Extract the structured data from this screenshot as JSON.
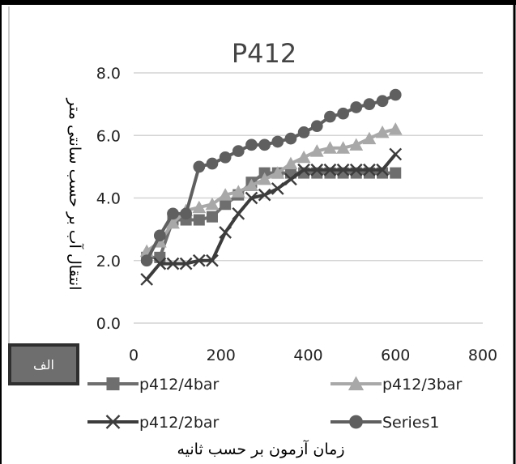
{
  "panel_label": "الف",
  "chart_data": {
    "type": "line",
    "title": "P412",
    "xlabel": "زمان آزمون بر حسب ثانیه",
    "ylabel": "انتقال آب بر حسب سانتی متر",
    "xlim": [
      0,
      800
    ],
    "ylim": [
      0,
      8
    ],
    "xticks": [
      "0",
      "200",
      "400",
      "600",
      "800"
    ],
    "yticks": [
      "0.0",
      "2.0",
      "4.0",
      "6.0",
      "8.0"
    ],
    "grid": "horizontal",
    "legend_position": "bottom",
    "series": [
      {
        "name": "p412/4bar",
        "color": "#6e6e6e",
        "marker": "square",
        "x": [
          30,
          60,
          90,
          120,
          150,
          180,
          210,
          240,
          270,
          300,
          330,
          360,
          390,
          420,
          450,
          480,
          510,
          540,
          570,
          600
        ],
        "y": [
          2.1,
          2.1,
          3.3,
          3.3,
          3.3,
          3.4,
          3.8,
          4.1,
          4.5,
          4.8,
          4.8,
          4.8,
          4.8,
          4.8,
          4.8,
          4.8,
          4.8,
          4.8,
          4.8,
          4.8
        ]
      },
      {
        "name": "p412/3bar",
        "color": "#a8a8a8",
        "marker": "triangle",
        "x": [
          30,
          60,
          90,
          120,
          150,
          180,
          210,
          240,
          270,
          300,
          330,
          360,
          390,
          420,
          450,
          480,
          510,
          540,
          570,
          600
        ],
        "y": [
          2.3,
          2.6,
          3.2,
          3.6,
          3.7,
          3.8,
          4.1,
          4.2,
          4.4,
          4.6,
          4.8,
          5.1,
          5.3,
          5.5,
          5.6,
          5.6,
          5.7,
          5.9,
          6.1,
          6.2
        ]
      },
      {
        "name": "p412/2bar",
        "color": "#3c3c3c",
        "marker": "x",
        "x": [
          30,
          60,
          90,
          120,
          150,
          180,
          210,
          240,
          270,
          300,
          330,
          360,
          390,
          420,
          450,
          480,
          510,
          540,
          570,
          600
        ],
        "y": [
          1.4,
          1.9,
          1.9,
          1.9,
          2.0,
          2.0,
          2.9,
          3.5,
          4.0,
          4.1,
          4.3,
          4.6,
          4.9,
          4.9,
          4.9,
          4.9,
          4.9,
          4.9,
          4.9,
          5.4
        ]
      },
      {
        "name": "Series1",
        "color": "#5f5f5f",
        "marker": "circle",
        "x": [
          30,
          60,
          90,
          120,
          150,
          180,
          210,
          240,
          270,
          300,
          330,
          360,
          390,
          420,
          450,
          480,
          510,
          540,
          570,
          600
        ],
        "y": [
          2.0,
          2.8,
          3.5,
          3.5,
          5.0,
          5.1,
          5.3,
          5.5,
          5.7,
          5.7,
          5.8,
          5.9,
          6.1,
          6.3,
          6.6,
          6.7,
          6.9,
          7.0,
          7.1,
          7.3
        ]
      }
    ]
  }
}
